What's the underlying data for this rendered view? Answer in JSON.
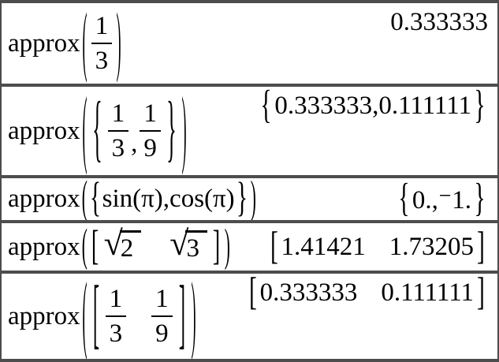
{
  "style": {
    "rule_color": "#4d4d4d",
    "text_color": "#000000",
    "background_color": "#ffffff"
  },
  "table": {
    "rows": [
      {
        "func": "approx",
        "open_paren": "(",
        "close_paren": ")",
        "fraction": {
          "num": "1",
          "den": "3"
        },
        "result": {
          "value": "0.333333"
        }
      },
      {
        "func": "approx",
        "open_paren": "(",
        "close_paren": ")",
        "list": {
          "open_brace": "{",
          "close_brace": "}",
          "comma": ",",
          "fraction1": {
            "num": "1",
            "den": "3"
          },
          "fraction2": {
            "num": "1",
            "den": "9"
          }
        },
        "result": {
          "open_brace": "{",
          "value": "0.333333,0.111111",
          "close_brace": "}"
        }
      },
      {
        "func": "approx",
        "open_paren": "(",
        "close_paren": ")",
        "list": {
          "open_brace": "{",
          "close_brace": "}",
          "expression": "sin(π),cos(π)"
        },
        "result": {
          "open_brace": "{",
          "value": "0.,⁻1.",
          "close_brace": "}"
        }
      },
      {
        "func": "approx",
        "open_paren": "(",
        "close_paren": ")",
        "matrix": {
          "open_bracket": "[",
          "close_bracket": "]",
          "sqrt1": {
            "radical": "√",
            "radicand": "2"
          },
          "sqrt2": {
            "radical": "√",
            "radicand": "3"
          }
        },
        "result": {
          "open_bracket": "[",
          "value1": "1.41421",
          "value2": "1.73205",
          "close_bracket": "]"
        }
      },
      {
        "func": "approx",
        "open_paren": "(",
        "close_paren": ")",
        "matrix": {
          "open_bracket": "[",
          "close_bracket": "]",
          "fraction1": {
            "num": "1",
            "den": "3"
          },
          "fraction2": {
            "num": "1",
            "den": "9"
          }
        },
        "result": {
          "open_bracket": "[",
          "value1": "0.333333",
          "value2": "0.111111",
          "close_bracket": "]"
        }
      }
    ]
  }
}
